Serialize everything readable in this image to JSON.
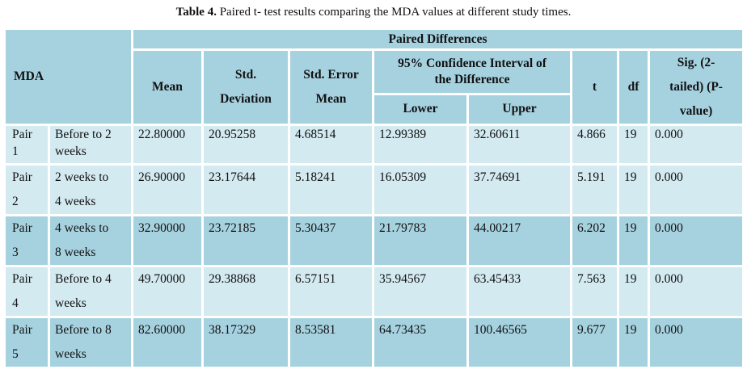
{
  "caption": {
    "label": "Table 4.",
    "text": " Paired t- test results comparing the MDA values at different study times."
  },
  "header": {
    "mda": "MDA",
    "paired_differences": "Paired Differences",
    "mean": "Mean",
    "std_deviation_1": "Std.",
    "std_deviation_2": "Deviation",
    "std_error_1": "Std. Error",
    "std_error_2": "Mean",
    "ci_1": "95% Confidence Interval of",
    "ci_2": "the Difference",
    "lower": "Lower",
    "upper": "Upper",
    "t": "t",
    "df": "df",
    "sig_1": "Sig. (2-",
    "sig_2": "tailed) (P-",
    "sig_3": "value)"
  },
  "rows": [
    {
      "pair_a": "Pair",
      "pair_b": "1",
      "comp_a": "Before to 2",
      "comp_b": "weeks",
      "mean": "22.80000",
      "sd": "20.95258",
      "se": "4.68514",
      "lower": "12.99389",
      "upper": "32.60611",
      "t": "4.866",
      "df": "19",
      "p": "0.000"
    },
    {
      "pair_a": "Pair",
      "pair_b": "2",
      "comp_a": "2 weeks to",
      "comp_b": "4 weeks",
      "mean": "26.90000",
      "sd": "23.17644",
      "se": "5.18241",
      "lower": "16.05309",
      "upper": "37.74691",
      "t": "5.191",
      "df": "19",
      "p": "0.000"
    },
    {
      "pair_a": "Pair",
      "pair_b": "3",
      "comp_a": "4 weeks to",
      "comp_b": "8 weeks",
      "mean": "32.90000",
      "sd": "23.72185",
      "se": "5.30437",
      "lower": "21.79783",
      "upper": "44.00217",
      "t": "6.202",
      "df": "19",
      "p": "0.000"
    },
    {
      "pair_a": "Pair",
      "pair_b": "4",
      "comp_a": "Before to 4",
      "comp_b": "weeks",
      "mean": "49.70000",
      "sd": "29.38868",
      "se": "6.57151",
      "lower": "35.94567",
      "upper": "63.45433",
      "t": "7.563",
      "df": "19",
      "p": "0.000"
    },
    {
      "pair_a": "Pair",
      "pair_b": "5",
      "comp_a": "Before to 8",
      "comp_b": "weeks",
      "mean": "82.60000",
      "sd": "38.17329",
      "se": "8.53581",
      "lower": "64.73435",
      "upper": "100.46565",
      "t": "9.677",
      "df": "19",
      "p": "0.000"
    }
  ],
  "colors": {
    "header_fill": "#a6d2e0",
    "row_light": "#d3eaf1",
    "row_dark": "#a6d2e0"
  }
}
